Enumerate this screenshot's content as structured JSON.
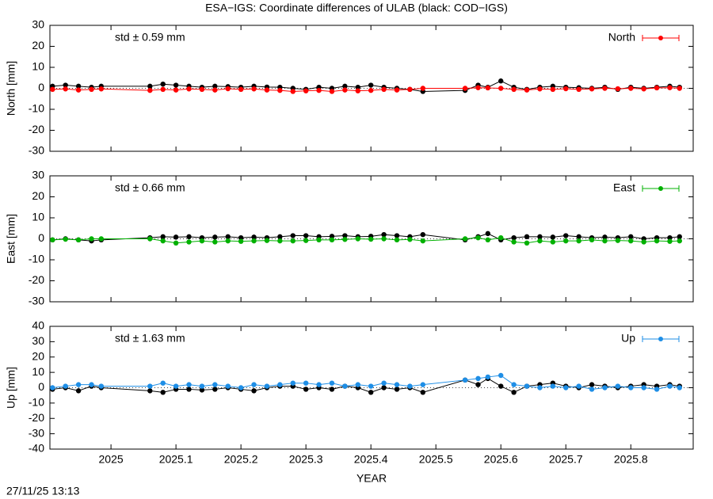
{
  "title": "ESA−IGS: Coordinate differences of ULAB (black: COD−IGS)",
  "footer": "27/11/25 13:13",
  "chart_data": [
    {
      "type": "line",
      "ylabel": "North [mm]",
      "annotation": "std ± 0.59 mm",
      "xlim": [
        2024.906,
        2025.896
      ],
      "ylim": [
        -30,
        30
      ],
      "yticks": [
        -30,
        -20,
        -10,
        0,
        10,
        20,
        30
      ],
      "series": [
        {
          "color": "#000000",
          "x": [
            2024.91,
            2024.93,
            2024.95,
            2024.97,
            2024.985,
            2025.06,
            2025.08,
            2025.1,
            2025.12,
            2025.14,
            2025.16,
            2025.18,
            2025.2,
            2025.22,
            2025.24,
            2025.26,
            2025.28,
            2025.3,
            2025.32,
            2025.34,
            2025.36,
            2025.38,
            2025.4,
            2025.42,
            2025.44,
            2025.46,
            2025.48,
            2025.545,
            2025.565,
            2025.58,
            2025.6,
            2025.62,
            2025.64,
            2025.66,
            2025.68,
            2025.7,
            2025.72,
            2025.74,
            2025.76,
            2025.78,
            2025.8,
            2025.82,
            2025.84,
            2025.86,
            2025.875
          ],
          "values": [
            1,
            1.5,
            1,
            0.5,
            1,
            1,
            2,
            1.5,
            1,
            0.5,
            1,
            0.8,
            0.5,
            1,
            0.6,
            0.5,
            0,
            -0.5,
            0.5,
            0,
            1,
            0.5,
            1.5,
            0.5,
            0,
            -0.5,
            -1.5,
            -1,
            1.5,
            0.5,
            3.5,
            0.5,
            -0.5,
            0.5,
            1,
            0.5,
            0.3,
            0,
            0.5,
            -0.5,
            0.5,
            0,
            0.5,
            1,
            0.5
          ]
        },
        {
          "name": "North",
          "color": "#ff0000",
          "x": [
            2024.91,
            2024.93,
            2024.95,
            2024.97,
            2024.985,
            2025.06,
            2025.08,
            2025.1,
            2025.12,
            2025.14,
            2025.16,
            2025.18,
            2025.2,
            2025.22,
            2025.24,
            2025.26,
            2025.28,
            2025.3,
            2025.32,
            2025.34,
            2025.36,
            2025.38,
            2025.4,
            2025.42,
            2025.44,
            2025.46,
            2025.48,
            2025.545,
            2025.565,
            2025.58,
            2025.6,
            2025.62,
            2025.64,
            2025.66,
            2025.68,
            2025.7,
            2025.72,
            2025.74,
            2025.76,
            2025.78,
            2025.8,
            2025.82,
            2025.84,
            2025.86,
            2025.875
          ],
          "values": [
            -0.5,
            -0.3,
            -0.8,
            -0.5,
            -0.3,
            -1,
            -0.5,
            -0.8,
            -0.3,
            -0.5,
            -0.8,
            -0.2,
            -0.5,
            -0.3,
            -0.8,
            -1,
            -1.5,
            -1.2,
            -1,
            -1.5,
            -0.8,
            -1.2,
            -1,
            -0.5,
            -0.8,
            -0.5,
            0,
            0,
            0.3,
            0.2,
            0,
            -0.5,
            -0.8,
            -0.3,
            -0.5,
            -0.2,
            -0.5,
            -0.3,
            0,
            -0.2,
            0,
            -0.3,
            0.2,
            0.3,
            0
          ]
        }
      ]
    },
    {
      "type": "line",
      "ylabel": "East [mm]",
      "annotation": "std ± 0.66 mm",
      "xlim": [
        2024.906,
        2025.896
      ],
      "ylim": [
        -30,
        30
      ],
      "yticks": [
        -30,
        -20,
        -10,
        0,
        10,
        20,
        30
      ],
      "series": [
        {
          "color": "#000000",
          "x": [
            2024.91,
            2024.93,
            2024.95,
            2024.97,
            2024.985,
            2025.06,
            2025.08,
            2025.1,
            2025.12,
            2025.14,
            2025.16,
            2025.18,
            2025.2,
            2025.22,
            2025.24,
            2025.26,
            2025.28,
            2025.3,
            2025.32,
            2025.34,
            2025.36,
            2025.38,
            2025.4,
            2025.42,
            2025.44,
            2025.46,
            2025.48,
            2025.545,
            2025.565,
            2025.58,
            2025.6,
            2025.62,
            2025.64,
            2025.66,
            2025.68,
            2025.7,
            2025.72,
            2025.74,
            2025.76,
            2025.78,
            2025.8,
            2025.82,
            2025.84,
            2025.86,
            2025.875
          ],
          "values": [
            -0.5,
            0,
            -0.5,
            -1,
            -0.5,
            0.5,
            1,
            0.8,
            1,
            0.5,
            0.8,
            1,
            0.5,
            0.8,
            0.5,
            1,
            1.5,
            1.5,
            1,
            1.2,
            1.5,
            1,
            1.2,
            2,
            1.5,
            1,
            2,
            -0.5,
            1,
            2.5,
            -0.5,
            0.5,
            1,
            1,
            0.8,
            1.5,
            1,
            0.5,
            0.8,
            0.5,
            1,
            0,
            0.5,
            0.5,
            1
          ]
        },
        {
          "name": "East",
          "color": "#00b000",
          "x": [
            2024.91,
            2024.93,
            2024.95,
            2024.97,
            2024.985,
            2025.06,
            2025.08,
            2025.1,
            2025.12,
            2025.14,
            2025.16,
            2025.18,
            2025.2,
            2025.22,
            2025.24,
            2025.26,
            2025.28,
            2025.3,
            2025.32,
            2025.34,
            2025.36,
            2025.38,
            2025.4,
            2025.42,
            2025.44,
            2025.46,
            2025.48,
            2025.545,
            2025.565,
            2025.58,
            2025.6,
            2025.62,
            2025.64,
            2025.66,
            2025.68,
            2025.7,
            2025.72,
            2025.74,
            2025.76,
            2025.78,
            2025.8,
            2025.82,
            2025.84,
            2025.86,
            2025.875
          ],
          "values": [
            -0.5,
            -0.2,
            -0.5,
            0,
            0,
            0,
            -1,
            -2,
            -1.5,
            -1,
            -1.5,
            -1,
            -1.2,
            -1,
            -0.8,
            -1,
            -1,
            -0.8,
            -0.5,
            -0.5,
            -0.3,
            0,
            -0.2,
            0,
            -0.5,
            -0.3,
            -1,
            0,
            0.5,
            -0.5,
            0.5,
            -1.5,
            -2,
            -1,
            -1.5,
            -1,
            -1,
            -0.5,
            -1,
            -0.8,
            -1,
            -1.5,
            -1,
            -1.2,
            -1
          ]
        }
      ]
    },
    {
      "type": "line",
      "ylabel": "Up [mm]",
      "annotation": "std ± 1.63 mm",
      "xlabel": "YEAR",
      "xlim": [
        2024.906,
        2025.896
      ],
      "ylim": [
        -40,
        40
      ],
      "yticks": [
        -40,
        -30,
        -20,
        -10,
        0,
        10,
        20,
        30,
        40
      ],
      "xticks": [
        2025,
        2025.1,
        2025.2,
        2025.3,
        2025.4,
        2025.5,
        2025.6,
        2025.7,
        2025.8
      ],
      "series": [
        {
          "color": "#000000",
          "x": [
            2024.91,
            2024.93,
            2024.95,
            2024.97,
            2024.985,
            2025.06,
            2025.08,
            2025.1,
            2025.12,
            2025.14,
            2025.16,
            2025.18,
            2025.2,
            2025.22,
            2025.24,
            2025.26,
            2025.28,
            2025.3,
            2025.32,
            2025.34,
            2025.36,
            2025.38,
            2025.4,
            2025.42,
            2025.44,
            2025.46,
            2025.48,
            2025.545,
            2025.565,
            2025.58,
            2025.6,
            2025.62,
            2025.64,
            2025.66,
            2025.68,
            2025.7,
            2025.72,
            2025.74,
            2025.76,
            2025.78,
            2025.8,
            2025.82,
            2025.84,
            2025.86,
            2025.875
          ],
          "values": [
            -1,
            0,
            -2,
            1,
            0,
            -2,
            -3,
            -1,
            -1,
            -1.5,
            -1,
            0,
            -1,
            -2,
            0,
            1,
            1,
            -1,
            0,
            -1,
            1,
            0,
            -3,
            0,
            -1,
            0,
            -3,
            5,
            2,
            6,
            1,
            -3,
            1,
            2,
            3,
            1,
            0,
            2,
            1,
            0,
            1,
            2,
            1,
            2,
            1
          ]
        },
        {
          "name": "Up",
          "color": "#1e8ee6",
          "x": [
            2024.91,
            2024.93,
            2024.95,
            2024.97,
            2024.985,
            2025.06,
            2025.08,
            2025.1,
            2025.12,
            2025.14,
            2025.16,
            2025.18,
            2025.2,
            2025.22,
            2025.24,
            2025.26,
            2025.28,
            2025.3,
            2025.32,
            2025.34,
            2025.36,
            2025.38,
            2025.4,
            2025.42,
            2025.44,
            2025.46,
            2025.48,
            2025.545,
            2025.565,
            2025.58,
            2025.6,
            2025.62,
            2025.64,
            2025.66,
            2025.68,
            2025.7,
            2025.72,
            2025.74,
            2025.76,
            2025.78,
            2025.8,
            2025.82,
            2025.84,
            2025.86,
            2025.875
          ],
          "values": [
            0,
            1,
            2,
            2,
            1,
            1,
            3,
            1,
            2,
            1,
            2,
            1,
            0,
            2,
            1,
            2,
            3,
            3,
            2,
            3,
            1,
            2,
            1,
            3,
            2,
            1,
            2,
            5,
            6,
            7,
            8,
            2,
            1,
            0,
            1,
            0,
            1,
            -1,
            0,
            1,
            0,
            0,
            -1,
            1,
            0
          ]
        }
      ]
    }
  ]
}
